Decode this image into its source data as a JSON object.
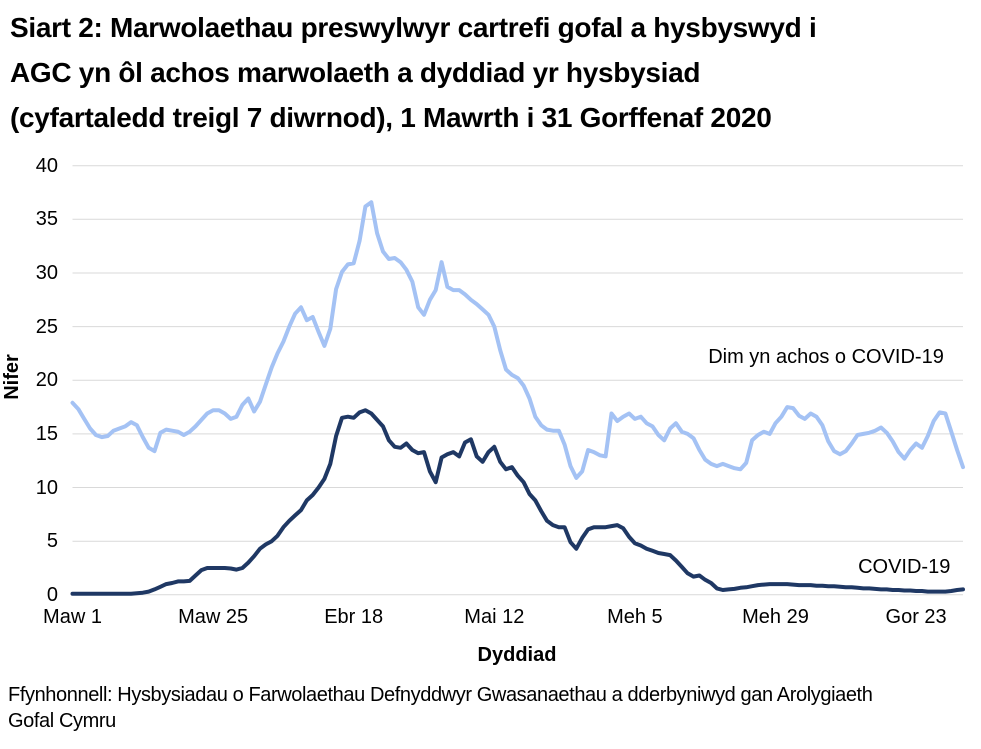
{
  "header": {
    "title_lines": [
      "Siart 2: Marwolaethau preswylwyr cartrefi gofal a hysbyswyd i",
      "AGC yn ôl achos marwolaeth a dyddiad yr hysbysiad",
      "(cyfartaledd treigl 7 diwrnod), 1 Mawrth i 31 Gorffenaf 2020"
    ]
  },
  "footer": {
    "lines": [
      "Ffynhonnell: Hysbysiadau o Farwolaethau Defnyddwyr Gwasanaethau a dderbyniwyd gan Arolygiaeth",
      "Gofal Cymru"
    ]
  },
  "chart_data": {
    "type": "line",
    "title": "Siart 2: Marwolaethau preswylwyr cartrefi gofal a hysbyswyd i AGC yn ôl achos marwolaeth a dyddiad yr hysbysiad (cyfartaledd treigl 7 diwrnod), 1 Mawrth i 31 Gorffenaf 2020",
    "xlabel": "Dyddiad",
    "ylabel": "Nifer",
    "ylim": [
      0,
      40
    ],
    "y_ticks": [
      0,
      5,
      10,
      15,
      20,
      25,
      30,
      35,
      40
    ],
    "x_range_days": 152,
    "x_period": "1 Mawrth - 31 Gorffenaf 2020",
    "x_ticks": [
      {
        "label": "Maw 1",
        "day": 0
      },
      {
        "label": "Maw 25",
        "day": 24
      },
      {
        "label": "Ebr 18",
        "day": 48
      },
      {
        "label": "Mai 12",
        "day": 72
      },
      {
        "label": "Meh 5",
        "day": 96
      },
      {
        "label": "Meh 29",
        "day": 120
      },
      {
        "label": "Gor 23",
        "day": 144
      }
    ],
    "grid": true,
    "legend_position": "inline-annotations",
    "colors": {
      "gridline": "#D9D9D9",
      "text": "#000000"
    },
    "series": [
      {
        "name": "Dim yn achos o COVID-19",
        "color": "#A4C2F4",
        "values": [
          17.9,
          17.3,
          16.4,
          15.5,
          14.9,
          14.7,
          14.8,
          15.3,
          15.5,
          15.7,
          16.1,
          15.8,
          14.7,
          13.7,
          13.4,
          15.1,
          15.4,
          15.3,
          15.2,
          14.9,
          15.2,
          15.7,
          16.3,
          16.9,
          17.2,
          17.2,
          16.9,
          16.4,
          16.6,
          17.7,
          18.3,
          17.1,
          18.0,
          19.6,
          21.2,
          22.5,
          23.6,
          25.0,
          26.2,
          26.8,
          25.6,
          25.9,
          24.5,
          23.2,
          24.8,
          28.5,
          30.1,
          30.8,
          30.9,
          33.0,
          36.2,
          36.6,
          33.7,
          32.0,
          31.3,
          31.4,
          31.0,
          30.3,
          29.2,
          26.8,
          26.1,
          27.5,
          28.4,
          31.0,
          28.7,
          28.4,
          28.4,
          28.0,
          27.5,
          27.1,
          26.6,
          26.1,
          25.0,
          22.8,
          21.0,
          20.5,
          20.2,
          19.5,
          18.3,
          16.6,
          15.8,
          15.4,
          15.3,
          15.3,
          14.0,
          12.0,
          10.9,
          11.5,
          13.5,
          13.3,
          13.0,
          12.9,
          16.9,
          16.2,
          16.6,
          16.9,
          16.4,
          16.6,
          16.0,
          15.7,
          14.9,
          14.4,
          15.5,
          16.0,
          15.2,
          15.0,
          14.6,
          13.5,
          12.6,
          12.2,
          12.0,
          12.2,
          12.0,
          11.8,
          11.7,
          12.3,
          14.4,
          14.9,
          15.2,
          15.0,
          16.0,
          16.6,
          17.5,
          17.4,
          16.7,
          16.4,
          16.9,
          16.6,
          15.8,
          14.3,
          13.4,
          13.1,
          13.4,
          14.1,
          14.9,
          15.0,
          15.1,
          15.3,
          15.6,
          15.1,
          14.3,
          13.3,
          12.7,
          13.5,
          14.1,
          13.7,
          14.8,
          16.2,
          17.0,
          16.9,
          15.2,
          13.5,
          11.9
        ]
      },
      {
        "name": "COVID-19",
        "color": "#1F3864",
        "values": [
          0.1,
          0.1,
          0.1,
          0.1,
          0.1,
          0.1,
          0.1,
          0.1,
          0.1,
          0.1,
          0.1,
          0.15,
          0.2,
          0.3,
          0.5,
          0.75,
          1.0,
          1.1,
          1.25,
          1.25,
          1.3,
          1.8,
          2.3,
          2.5,
          2.5,
          2.5,
          2.5,
          2.45,
          2.35,
          2.5,
          3.0,
          3.6,
          4.3,
          4.7,
          5.0,
          5.5,
          6.3,
          6.9,
          7.4,
          7.9,
          8.8,
          9.3,
          10.0,
          10.8,
          12.2,
          14.8,
          16.5,
          16.6,
          16.5,
          17.0,
          17.2,
          16.9,
          16.3,
          15.7,
          14.4,
          13.8,
          13.7,
          14.1,
          13.5,
          13.2,
          13.3,
          11.5,
          10.5,
          12.8,
          13.1,
          13.3,
          12.9,
          14.2,
          14.5,
          12.9,
          12.4,
          13.3,
          13.8,
          12.4,
          11.7,
          11.9,
          11.1,
          10.5,
          9.4,
          8.8,
          7.8,
          6.9,
          6.5,
          6.3,
          6.3,
          4.9,
          4.3,
          5.3,
          6.1,
          6.3,
          6.3,
          6.3,
          6.4,
          6.5,
          6.2,
          5.4,
          4.8,
          4.6,
          4.3,
          4.1,
          3.9,
          3.8,
          3.7,
          3.2,
          2.6,
          2.0,
          1.7,
          1.8,
          1.4,
          1.1,
          0.6,
          0.45,
          0.5,
          0.55,
          0.65,
          0.7,
          0.8,
          0.9,
          0.95,
          1.0,
          1.0,
          1.0,
          1.0,
          0.95,
          0.9,
          0.9,
          0.9,
          0.85,
          0.85,
          0.8,
          0.8,
          0.75,
          0.7,
          0.7,
          0.65,
          0.6,
          0.6,
          0.55,
          0.5,
          0.5,
          0.45,
          0.45,
          0.4,
          0.4,
          0.35,
          0.35,
          0.3,
          0.3,
          0.3,
          0.3,
          0.35,
          0.45,
          0.5
        ]
      }
    ],
    "annotations": [
      {
        "text": "Dim yn achos o COVID-19",
        "series": "Dim yn achos o COVID-19",
        "day": 108.5,
        "value": 23.2
      },
      {
        "text": "COVID-19",
        "series": "COVID-19",
        "day": 134.1,
        "value": 3.6
      }
    ]
  }
}
